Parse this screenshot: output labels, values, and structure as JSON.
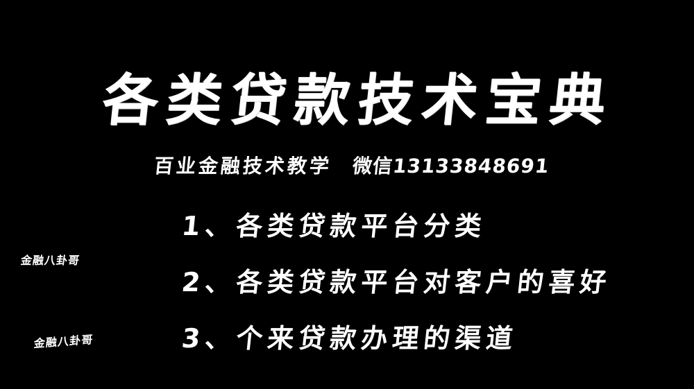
{
  "title": "各类贷款技术宝典",
  "subtitle": {
    "org": "百业金融技术教学",
    "wechat": "微信13133848691"
  },
  "items": [
    {
      "number": "1、",
      "text": "各类贷款平台分类"
    },
    {
      "number": "2、",
      "text": "各类贷款平台对客户的喜好"
    },
    {
      "number": "3、",
      "text": "个来贷款办理的渠道"
    }
  ],
  "watermarks": [
    "金融八卦哥",
    "金融八卦哥"
  ],
  "colors": {
    "background": "#000000",
    "text": "#ffffff"
  }
}
